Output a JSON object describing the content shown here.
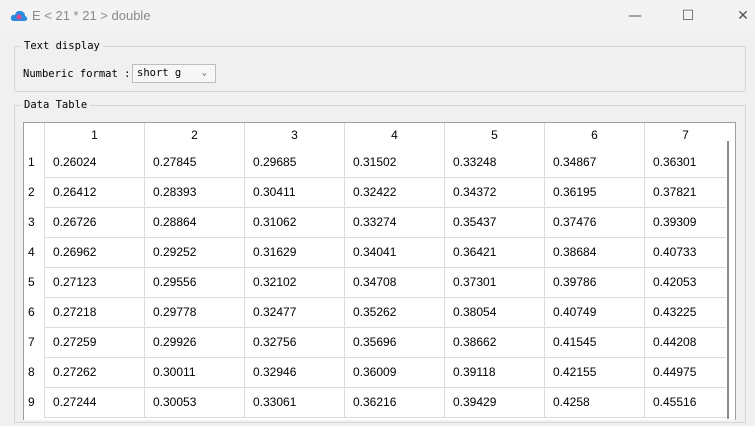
{
  "window": {
    "title": "E < 21 * 21 > double",
    "minimize_icon": "minimize-icon",
    "maximize_icon": "maximize-icon"
  },
  "text_display": {
    "legend": "Text display",
    "format_label": "Numberic format :",
    "format_value": "short g"
  },
  "data_table": {
    "legend": "Data Table",
    "columns": [
      "1",
      "2",
      "3",
      "4",
      "5",
      "6",
      "7"
    ],
    "rows": [
      {
        "label": "1",
        "cells": [
          "0.26024",
          "0.27845",
          "0.29685",
          "0.31502",
          "0.33248",
          "0.34867",
          "0.36301"
        ]
      },
      {
        "label": "2",
        "cells": [
          "0.26412",
          "0.28393",
          "0.30411",
          "0.32422",
          "0.34372",
          "0.36195",
          "0.37821"
        ]
      },
      {
        "label": "3",
        "cells": [
          "0.26726",
          "0.28864",
          "0.31062",
          "0.33274",
          "0.35437",
          "0.37476",
          "0.39309"
        ]
      },
      {
        "label": "4",
        "cells": [
          "0.26962",
          "0.29252",
          "0.31629",
          "0.34041",
          "0.36421",
          "0.38684",
          "0.40733"
        ]
      },
      {
        "label": "5",
        "cells": [
          "0.27123",
          "0.29556",
          "0.32102",
          "0.34708",
          "0.37301",
          "0.39786",
          "0.42053"
        ]
      },
      {
        "label": "6",
        "cells": [
          "0.27218",
          "0.29778",
          "0.32477",
          "0.35262",
          "0.38054",
          "0.40749",
          "0.43225"
        ]
      },
      {
        "label": "7",
        "cells": [
          "0.27259",
          "0.29926",
          "0.32756",
          "0.35696",
          "0.38662",
          "0.41545",
          "0.44208"
        ]
      },
      {
        "label": "8",
        "cells": [
          "0.27262",
          "0.30011",
          "0.32946",
          "0.36009",
          "0.39118",
          "0.42155",
          "0.44975"
        ]
      },
      {
        "label": "9",
        "cells": [
          "0.27244",
          "0.30053",
          "0.33061",
          "0.36216",
          "0.39429",
          "0.4258",
          "0.45516"
        ]
      }
    ]
  }
}
